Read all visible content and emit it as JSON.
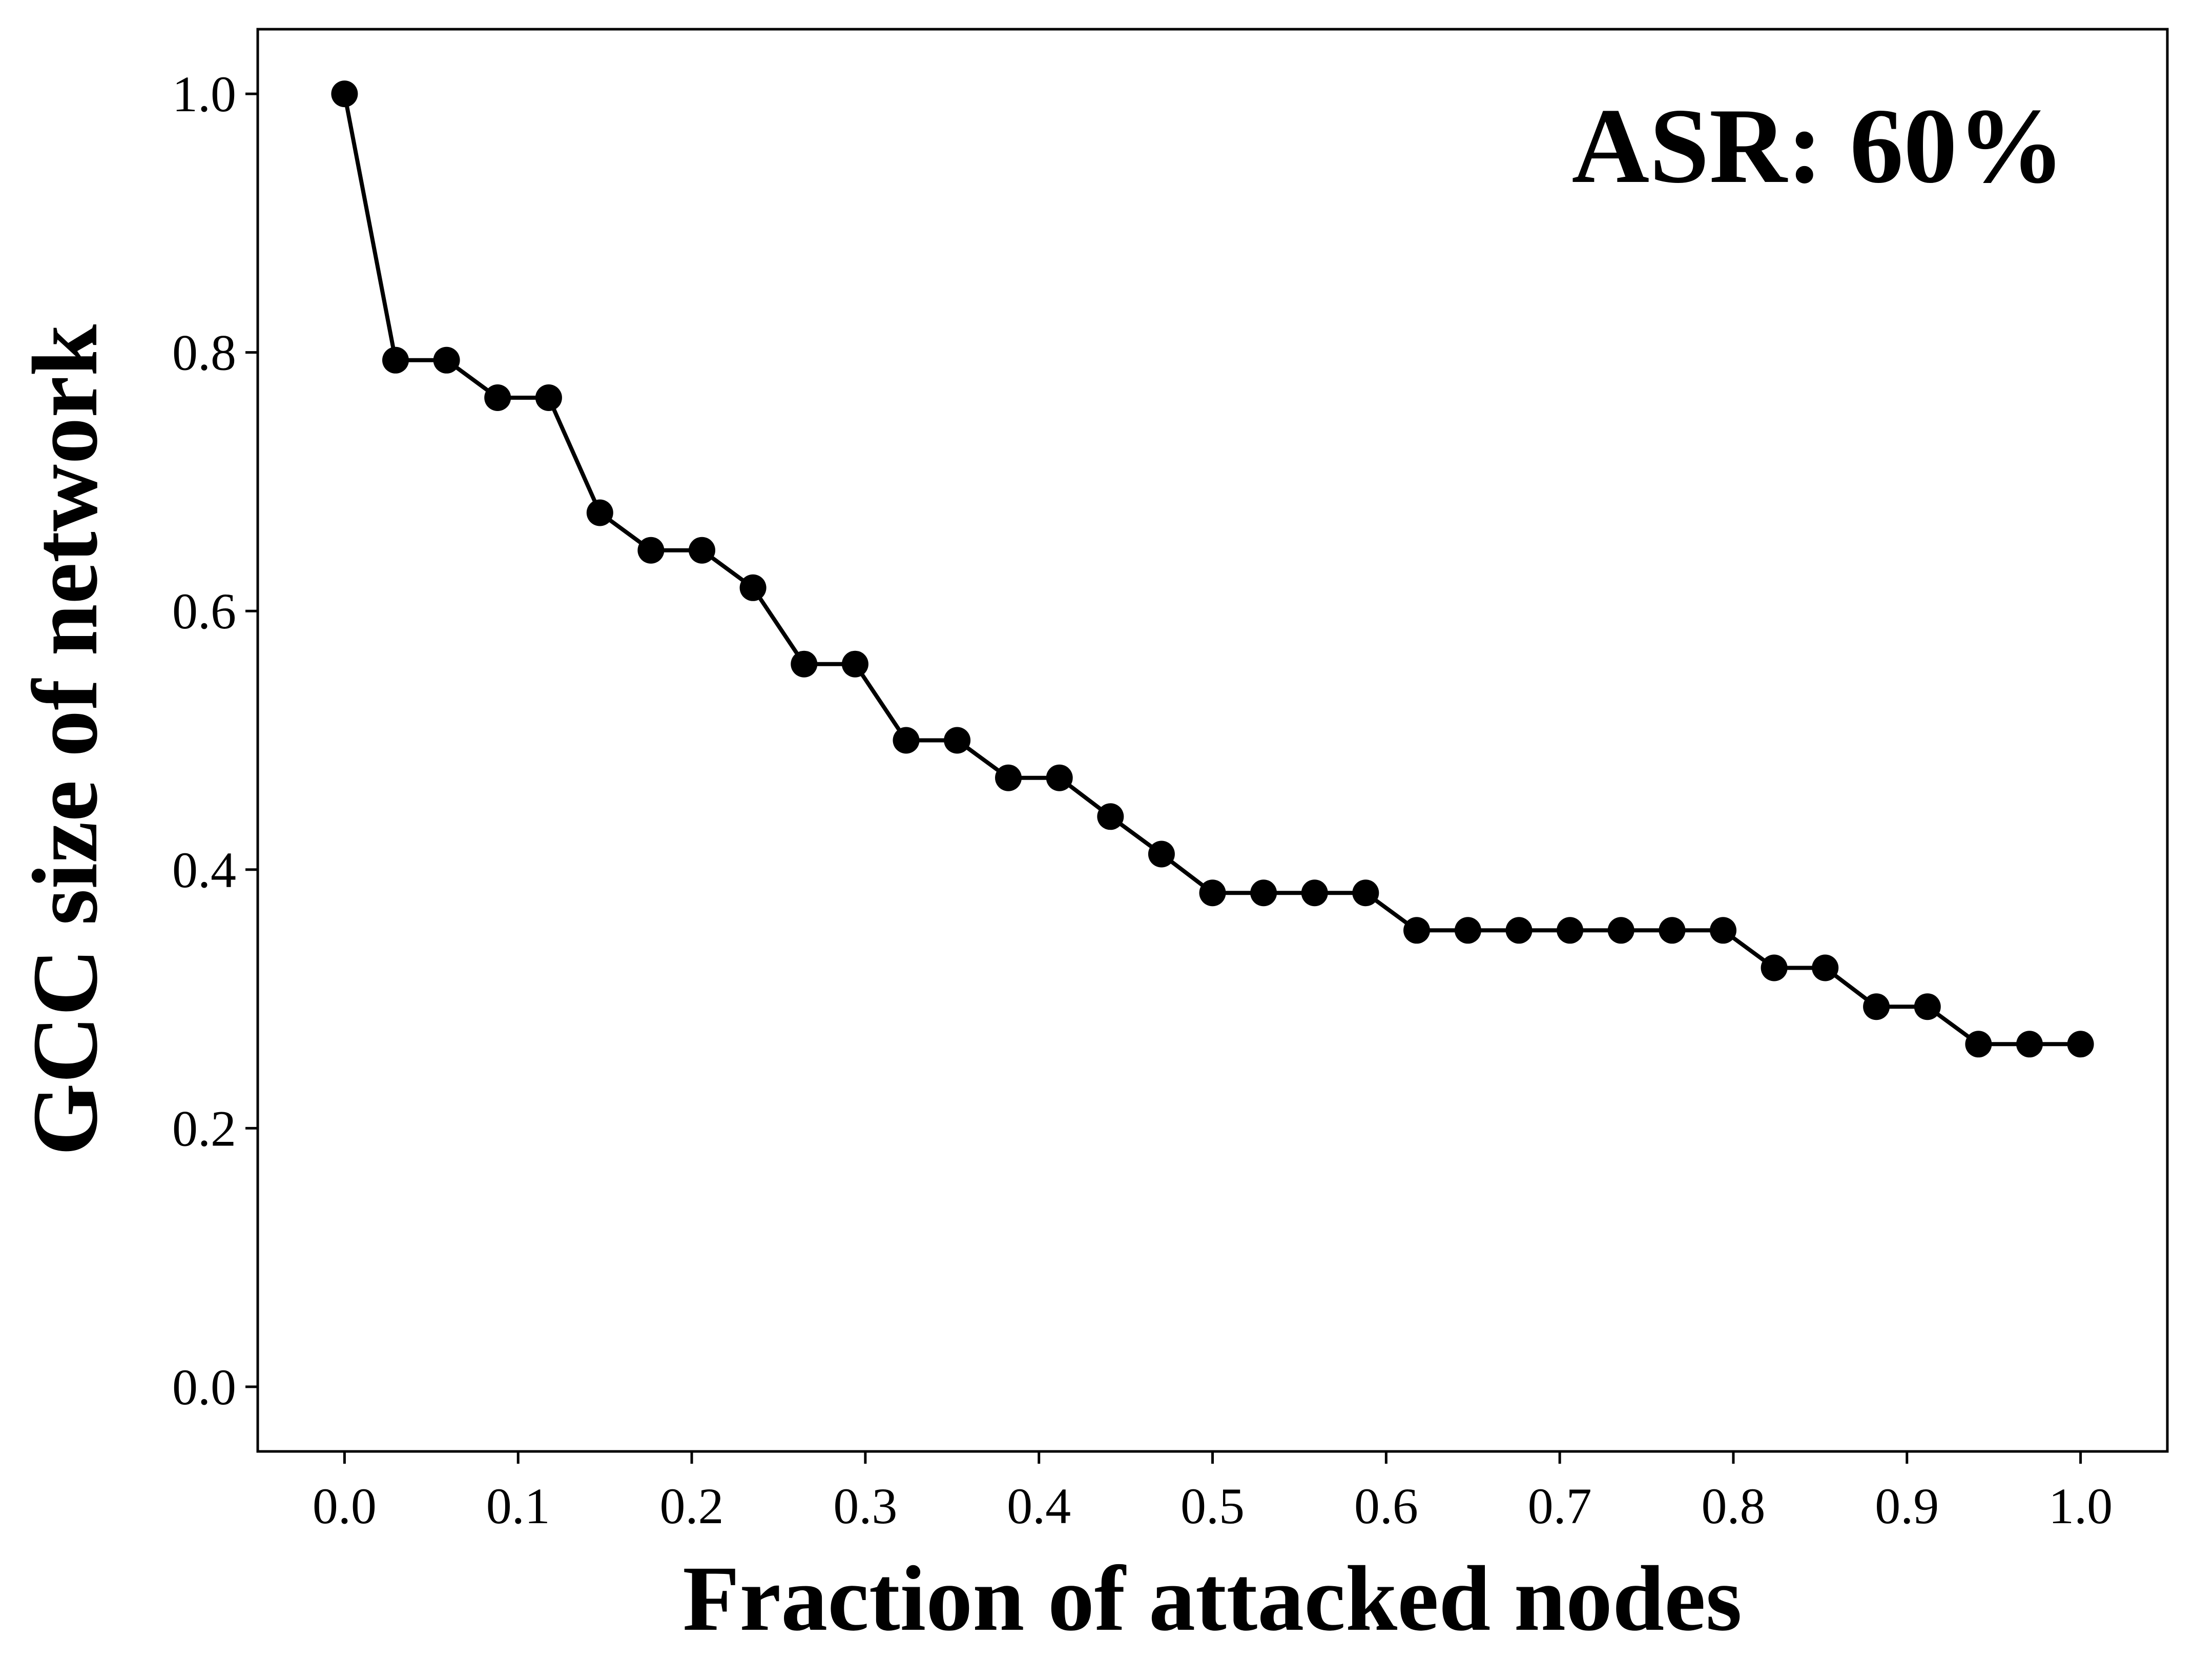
{
  "chart_data": {
    "type": "line",
    "xlabel": "Fraction of attacked nodes",
    "ylabel": "GCC size of network",
    "annotation": "ASR: 60%",
    "xlim": [
      -0.05,
      1.05
    ],
    "ylim": [
      -0.05,
      1.05
    ],
    "xticks": [
      "0.0",
      "0.1",
      "0.2",
      "0.3",
      "0.4",
      "0.5",
      "0.6",
      "0.7",
      "0.8",
      "0.9",
      "1.0"
    ],
    "yticks": [
      "0.0",
      "0.2",
      "0.4",
      "0.6",
      "0.8",
      "1.0"
    ],
    "grid": false,
    "legend": false,
    "line_color": "#000000",
    "marker": "circle",
    "series": [
      {
        "x": [
          0.0,
          0.0294,
          0.0588,
          0.0882,
          0.1176,
          0.1471,
          0.1765,
          0.2059,
          0.2353,
          0.2647,
          0.2941,
          0.3235,
          0.3529,
          0.3824,
          0.4118,
          0.4412,
          0.4706,
          0.5,
          0.5294,
          0.5588,
          0.5882,
          0.6176,
          0.6471,
          0.6765,
          0.7059,
          0.7353,
          0.7647,
          0.7941,
          0.8235,
          0.8529,
          0.8824,
          0.9118,
          0.9412,
          0.9706,
          1.0
        ],
        "values": [
          1.0,
          0.794,
          0.794,
          0.765,
          0.765,
          0.676,
          0.647,
          0.647,
          0.618,
          0.559,
          0.559,
          0.5,
          0.5,
          0.471,
          0.471,
          0.441,
          0.412,
          0.382,
          0.382,
          0.382,
          0.382,
          0.353,
          0.353,
          0.353,
          0.353,
          0.353,
          0.353,
          0.353,
          0.324,
          0.324,
          0.294,
          0.294,
          0.265,
          0.265,
          0.265
        ]
      }
    ]
  }
}
